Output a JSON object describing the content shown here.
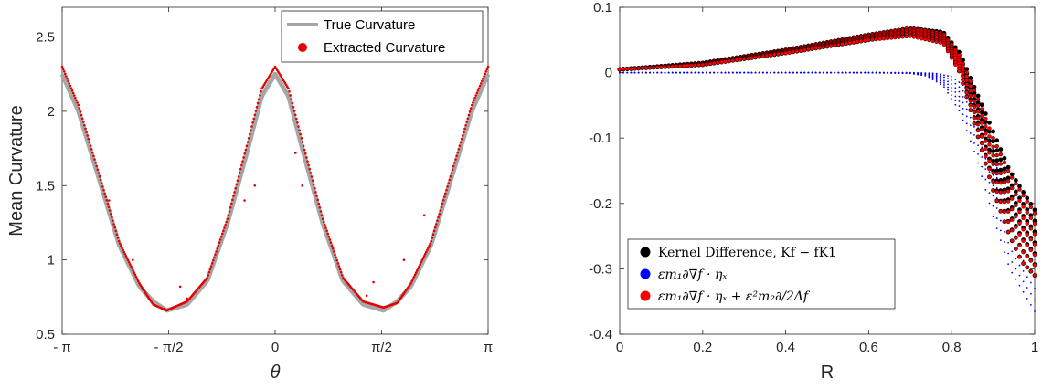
{
  "chart_data": [
    {
      "type": "scatter",
      "ylabel": "Mean Curvature",
      "xlabel": "θ",
      "xlim": [
        -3.14159,
        3.14159
      ],
      "ylim": [
        0.5,
        2.7
      ],
      "xtick_values": [
        -3.14159,
        -1.5708,
        0,
        1.5708,
        3.14159
      ],
      "xtick_labels": [
        "- π",
        "- π/2",
        "0",
        "π/2",
        "π"
      ],
      "ytick_values": [
        0.5,
        1,
        1.5,
        2,
        2.5
      ],
      "ytick_labels": [
        "0.5",
        "1",
        "1.5",
        "2",
        "2.5"
      ],
      "legend_position": "top-right",
      "grid": false,
      "series": [
        {
          "name": "True Curvature",
          "style": "line",
          "color": "#a6a6a6",
          "x": [
            -3.14159,
            -2.9,
            -2.6,
            -2.3,
            -2.0,
            -1.8,
            -1.6,
            -1.3,
            -1.0,
            -0.7,
            -0.4,
            -0.2,
            0,
            0.2,
            0.4,
            0.7,
            1.0,
            1.3,
            1.6,
            1.8,
            2.0,
            2.3,
            2.6,
            2.9,
            3.14159
          ],
          "y": [
            2.25,
            2.0,
            1.55,
            1.1,
            0.82,
            0.72,
            0.66,
            0.7,
            0.86,
            1.25,
            1.75,
            2.1,
            2.25,
            2.1,
            1.75,
            1.25,
            0.86,
            0.7,
            0.66,
            0.72,
            0.82,
            1.1,
            1.55,
            2.0,
            2.25
          ]
        },
        {
          "name": "Extracted Curvature",
          "style": "dots",
          "color": "#e60000",
          "x": [
            -3.14159,
            -2.9,
            -2.6,
            -2.3,
            -2.0,
            -1.8,
            -1.6,
            -1.3,
            -1.0,
            -0.7,
            -0.4,
            -0.2,
            0,
            0.2,
            0.4,
            0.7,
            1.0,
            1.3,
            1.6,
            1.8,
            2.0,
            2.3,
            2.6,
            2.9,
            3.14159
          ],
          "y": [
            2.3,
            2.04,
            1.58,
            1.12,
            0.84,
            0.7,
            0.66,
            0.72,
            0.88,
            1.28,
            1.8,
            2.15,
            2.3,
            2.15,
            1.8,
            1.28,
            0.88,
            0.72,
            0.68,
            0.71,
            0.84,
            1.12,
            1.58,
            2.04,
            2.3
          ]
        },
        {
          "name": "outliers",
          "style": "dots",
          "color": "#e60000",
          "x": [
            -2.45,
            -2.1,
            -1.95,
            -1.4,
            -1.3,
            -0.45,
            -0.3,
            0.3,
            0.4,
            1.35,
            1.45,
            1.9,
            2.2
          ],
          "y": [
            1.4,
            1.0,
            0.8,
            0.82,
            0.74,
            1.4,
            1.5,
            1.72,
            1.5,
            0.76,
            0.85,
            1.0,
            1.3
          ]
        }
      ]
    },
    {
      "type": "scatter",
      "xlabel": "R",
      "ylabel": "",
      "xlim": [
        0,
        1
      ],
      "ylim": [
        -0.4,
        0.1
      ],
      "xtick_values": [
        0,
        0.2,
        0.4,
        0.6,
        0.8,
        1
      ],
      "xtick_labels": [
        "0",
        "0.2",
        "0.4",
        "0.6",
        "0.8",
        "1"
      ],
      "ytick_values": [
        0.1,
        0,
        -0.1,
        -0.2,
        -0.3,
        -0.4
      ],
      "ytick_labels": [
        "0.1",
        "0",
        "-0.1",
        "-0.2",
        "-0.3",
        "-0.4"
      ],
      "legend_position": "bottom-left",
      "grid": false,
      "series": [
        {
          "name": "Kernel Difference, Kf − fK1",
          "color": "#000000",
          "upper": {
            "x": [
              0,
              0.2,
              0.4,
              0.6,
              0.7,
              0.78,
              0.82,
              0.86,
              0.9,
              0.94,
              0.97,
              1.0
            ],
            "y": [
              0.005,
              0.015,
              0.035,
              0.058,
              0.068,
              0.062,
              0.03,
              -0.03,
              -0.09,
              -0.15,
              -0.18,
              -0.21
            ]
          },
          "lower": {
            "x": [
              0,
              0.2,
              0.4,
              0.6,
              0.7,
              0.78,
              0.82,
              0.86,
              0.9,
              0.94,
              0.97,
              1.0
            ],
            "y": [
              0.005,
              0.012,
              0.03,
              0.05,
              0.058,
              0.05,
              0.0,
              -0.09,
              -0.18,
              -0.25,
              -0.29,
              -0.31
            ]
          }
        },
        {
          "name": "εm₁∂∇f · ηₓ",
          "color": "#0000ff",
          "upper": {
            "x": [
              0,
              0.2,
              0.4,
              0.6,
              0.7,
              0.76,
              0.8,
              0.84,
              0.88,
              0.92,
              0.96,
              1.0
            ],
            "y": [
              0,
              0,
              0,
              0,
              0,
              -0.001,
              -0.006,
              -0.025,
              -0.08,
              -0.17,
              -0.23,
              -0.26
            ]
          },
          "lower": {
            "x": [
              0,
              0.2,
              0.4,
              0.6,
              0.7,
              0.74,
              0.78,
              0.82,
              0.86,
              0.9,
              0.94,
              1.0
            ],
            "y": [
              0,
              0,
              0,
              0,
              -0.001,
              -0.005,
              -0.02,
              -0.06,
              -0.13,
              -0.22,
              -0.3,
              -0.365
            ]
          }
        },
        {
          "name": "εm₁∂∇f · ηₓ + ε²m₂∂/2Δf",
          "color": "#ff0000",
          "upper": {
            "x": [
              0,
              0.2,
              0.4,
              0.6,
              0.7,
              0.78,
              0.82,
              0.86,
              0.9,
              0.94,
              0.97,
              1.0
            ],
            "y": [
              0.005,
              0.015,
              0.035,
              0.058,
              0.068,
              0.06,
              0.025,
              -0.035,
              -0.1,
              -0.155,
              -0.185,
              -0.215
            ]
          },
          "lower": {
            "x": [
              0,
              0.2,
              0.4,
              0.6,
              0.7,
              0.78,
              0.82,
              0.86,
              0.9,
              0.94,
              0.97,
              1.0
            ],
            "y": [
              0.005,
              0.012,
              0.03,
              0.05,
              0.056,
              0.045,
              0.0,
              -0.09,
              -0.18,
              -0.25,
              -0.29,
              -0.31
            ]
          }
        }
      ]
    }
  ]
}
